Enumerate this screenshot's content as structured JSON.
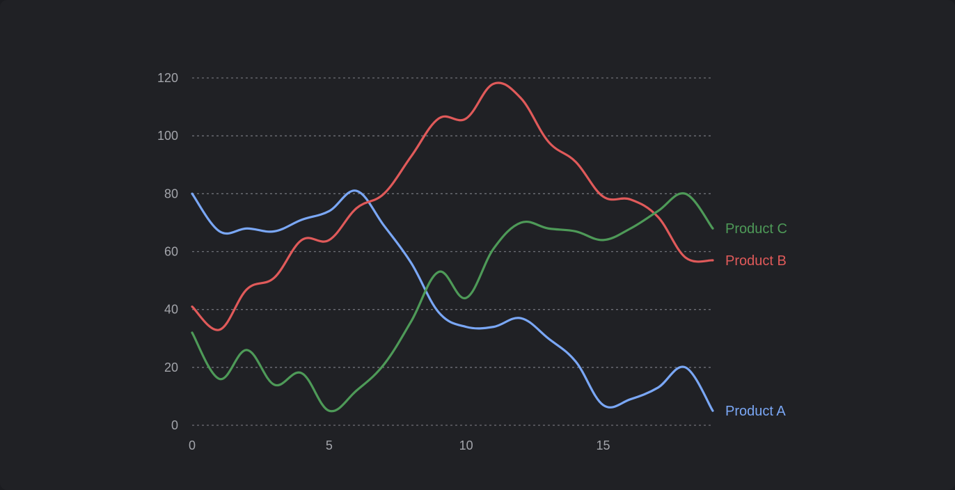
{
  "chart_data": {
    "type": "line",
    "title": "",
    "xlabel": "",
    "ylabel": "",
    "x": [
      0,
      1,
      2,
      3,
      4,
      5,
      6,
      7,
      8,
      9,
      10,
      11,
      12,
      13,
      14,
      15,
      16,
      17,
      18,
      19
    ],
    "xlim": [
      0,
      19
    ],
    "ylim": [
      0,
      120
    ],
    "x_ticks": [
      0,
      5,
      10,
      15
    ],
    "y_ticks": [
      0,
      20,
      40,
      60,
      80,
      100,
      120
    ],
    "grid": "horizontal-dashed",
    "legend": "inline-right",
    "series": [
      {
        "name": "Product A",
        "color": "#7aa7f5",
        "values": [
          80,
          67,
          68,
          67,
          71,
          74,
          81,
          69,
          56,
          39,
          34,
          34,
          37,
          30,
          22,
          7,
          9,
          13,
          20,
          5
        ]
      },
      {
        "name": "Product B",
        "color": "#e05a5a",
        "values": [
          41,
          33,
          47,
          51,
          64,
          64,
          75,
          80,
          93,
          106,
          106,
          118,
          113,
          98,
          91,
          79,
          78,
          72,
          58,
          57
        ]
      },
      {
        "name": "Product C",
        "color": "#4e9a58",
        "values": [
          32,
          16,
          26,
          14,
          18,
          5,
          12,
          21,
          36,
          53,
          44,
          61,
          70,
          68,
          67,
          64,
          68,
          74,
          80,
          68
        ]
      }
    ]
  }
}
